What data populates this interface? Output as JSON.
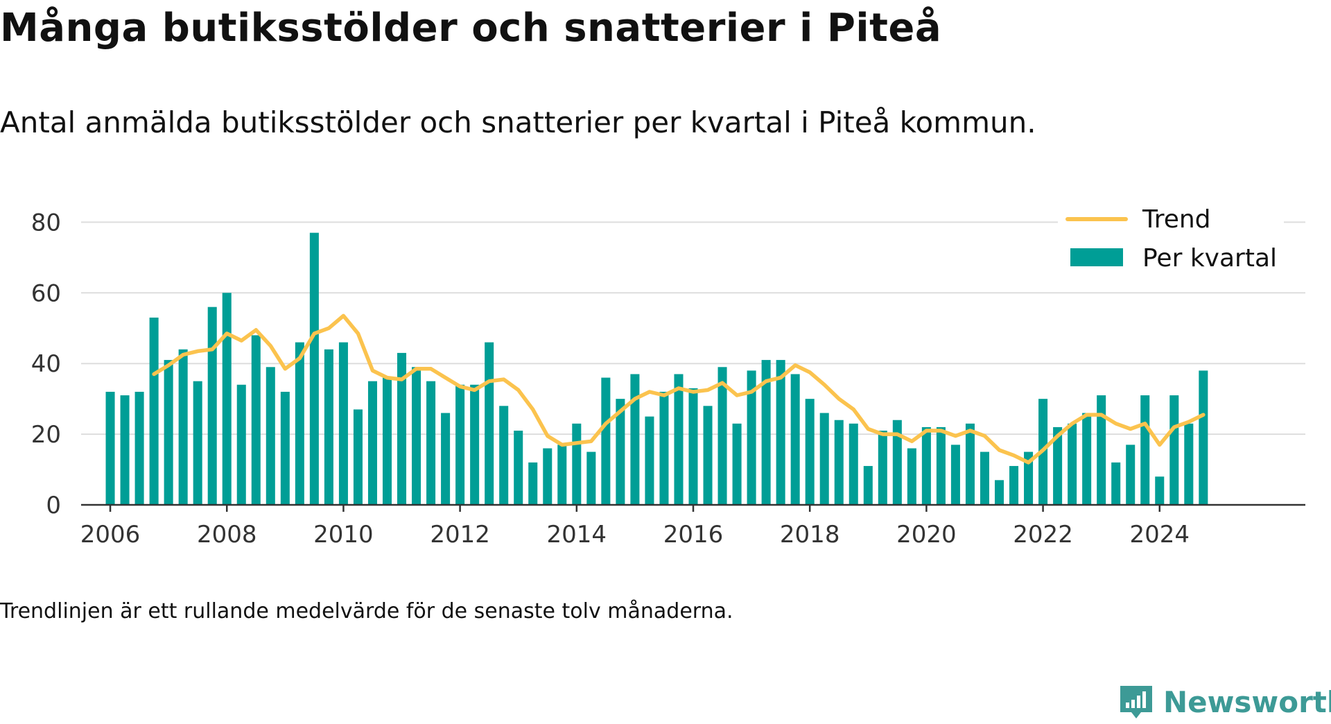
{
  "title": "Många butiksstölder och snatterier i Piteå",
  "subtitle": "Antal anmälda butiksstölder och snatterier per kvartal i Piteå kommun.",
  "note": "Trendlinjen är ett rullande medelvärde för de senaste tolv månaderna.",
  "brand": {
    "name": "Newsworthy"
  },
  "colors": {
    "bars": "#009e96",
    "trend": "#fbc34e",
    "grid": "#dddddd",
    "axis": "#333333",
    "brand": "#3d9a96"
  },
  "chart_data": {
    "type": "bar",
    "x_axis": {
      "ticks": [
        "2006",
        "2008",
        "2010",
        "2012",
        "2014",
        "2016",
        "2018",
        "2020",
        "2022",
        "2024"
      ],
      "range": [
        2005.5,
        2026.5
      ]
    },
    "y_axis": {
      "ticks": [
        0,
        20,
        40,
        60,
        80
      ],
      "range": [
        0,
        84
      ]
    },
    "grid": true,
    "legend": {
      "placement": "top-right",
      "entries": [
        "Trend",
        "Per kvartal"
      ]
    },
    "x": [
      2006.0,
      2006.25,
      2006.5,
      2006.75,
      2007.0,
      2007.25,
      2007.5,
      2007.75,
      2008.0,
      2008.25,
      2008.5,
      2008.75,
      2009.0,
      2009.25,
      2009.5,
      2009.75,
      2010.0,
      2010.25,
      2010.5,
      2010.75,
      2011.0,
      2011.25,
      2011.5,
      2011.75,
      2012.0,
      2012.25,
      2012.5,
      2012.75,
      2013.0,
      2013.25,
      2013.5,
      2013.75,
      2014.0,
      2014.25,
      2014.5,
      2014.75,
      2015.0,
      2015.25,
      2015.5,
      2015.75,
      2016.0,
      2016.25,
      2016.5,
      2016.75,
      2017.0,
      2017.25,
      2017.5,
      2017.75,
      2018.0,
      2018.25,
      2018.5,
      2018.75,
      2019.0,
      2019.25,
      2019.5,
      2019.75,
      2020.0,
      2020.25,
      2020.5,
      2020.75,
      2021.0,
      2021.25,
      2021.5,
      2021.75,
      2022.0,
      2022.25,
      2022.5,
      2022.75,
      2023.0,
      2023.25,
      2023.5,
      2023.75,
      2024.0,
      2024.25,
      2024.5,
      2024.75
    ],
    "series": [
      {
        "name": "Per kvartal",
        "type": "bar",
        "values": [
          32,
          31,
          32,
          53,
          41,
          44,
          35,
          56,
          60,
          34,
          48,
          39,
          32,
          46,
          77,
          44,
          46,
          27,
          35,
          36,
          43,
          39,
          35,
          26,
          34,
          34,
          46,
          28,
          21,
          12,
          16,
          17,
          23,
          15,
          36,
          30,
          37,
          25,
          32,
          37,
          33,
          28,
          39,
          23,
          38,
          41,
          41,
          37,
          30,
          26,
          24,
          23,
          11,
          21,
          24,
          16,
          22,
          22,
          17,
          23,
          15,
          7,
          11,
          15,
          30,
          22,
          23,
          26,
          31,
          12,
          17,
          31,
          8,
          31,
          23,
          38
        ]
      },
      {
        "name": "Trend",
        "type": "line",
        "values": [
          null,
          null,
          null,
          37,
          39.5,
          42.5,
          43.5,
          44,
          48.5,
          46.5,
          49.5,
          45,
          38.5,
          41.5,
          48.5,
          50,
          53.5,
          48.5,
          38,
          36,
          35.5,
          38.5,
          38.5,
          36,
          33.5,
          32.5,
          35,
          35.5,
          32.5,
          27,
          19.5,
          17,
          17.5,
          18,
          23,
          26.5,
          30,
          32,
          31,
          33,
          32,
          32.5,
          34.5,
          31,
          32,
          35,
          36,
          39.5,
          37.5,
          34,
          30,
          27,
          21.5,
          20,
          20,
          18,
          21,
          21,
          19.5,
          21,
          19.5,
          15.5,
          14,
          12,
          15.5,
          19.5,
          23,
          25.5,
          25.5,
          23,
          21.5,
          23,
          17,
          22,
          23.5,
          25.5
        ]
      }
    ]
  }
}
